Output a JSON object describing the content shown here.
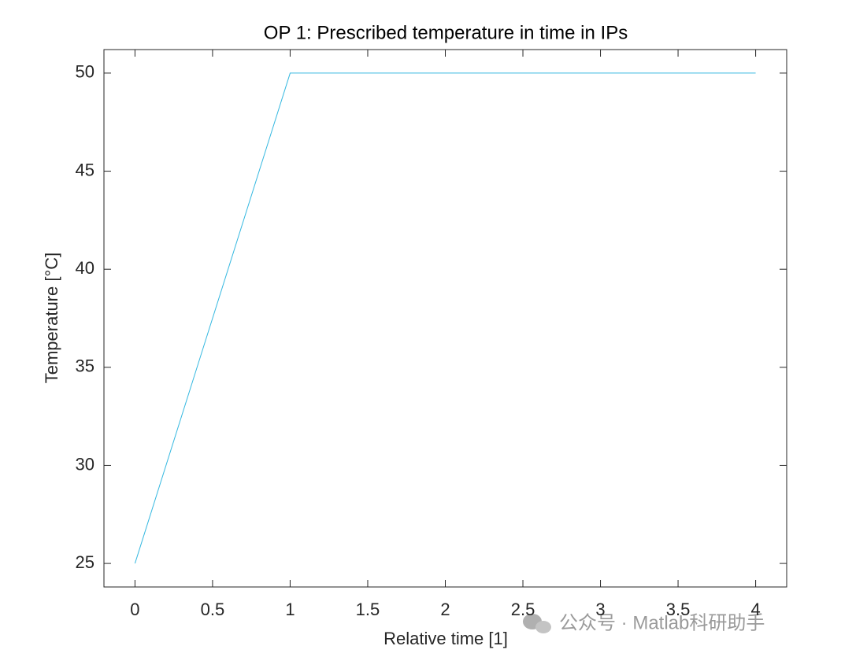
{
  "chart_data": {
    "type": "line",
    "title": "OP 1: Prescribed temperature in time in IPs",
    "x_label": "Relative time [1]",
    "y_label": "Temperature [°C]",
    "x": [
      0,
      1,
      4
    ],
    "series": [
      {
        "name": "Temperature",
        "color": "#35b8e0",
        "values": [
          25,
          50,
          50
        ]
      }
    ],
    "xlim": [
      -0.2,
      4.2
    ],
    "ylim": [
      23.8,
      51.2
    ],
    "xticks": [
      0,
      0.5,
      1,
      1.5,
      2,
      2.5,
      3,
      3.5,
      4
    ],
    "yticks": [
      25,
      30,
      35,
      40,
      45,
      50
    ],
    "grid": false,
    "watermark": "公众号 · Matlab科研助手"
  }
}
